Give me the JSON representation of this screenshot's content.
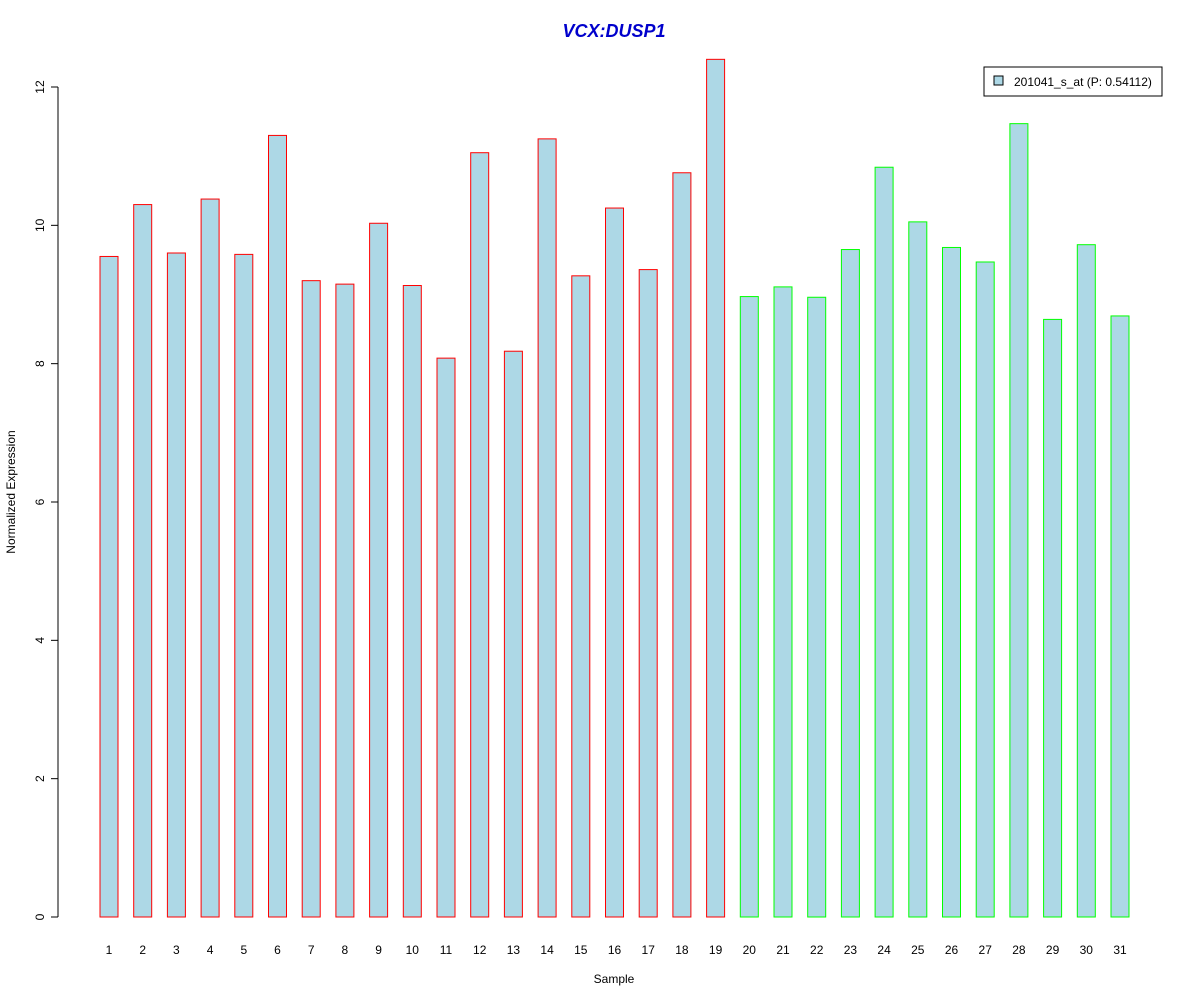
{
  "chart_data": {
    "type": "bar",
    "title": "VCX:DUSP1",
    "xlabel": "Sample",
    "ylabel": "Normalized Expression",
    "ylim": [
      0,
      12.4
    ],
    "yticks": [
      0,
      2,
      4,
      6,
      8,
      10,
      12
    ],
    "grid": false,
    "legend_position": "top-right",
    "categories": [
      "1",
      "2",
      "3",
      "4",
      "5",
      "6",
      "7",
      "8",
      "9",
      "10",
      "11",
      "12",
      "13",
      "14",
      "15",
      "16",
      "17",
      "18",
      "19",
      "20",
      "21",
      "22",
      "23",
      "24",
      "25",
      "26",
      "27",
      "28",
      "29",
      "30",
      "31"
    ],
    "values": [
      9.55,
      10.3,
      9.6,
      10.38,
      9.58,
      11.3,
      9.2,
      9.15,
      10.03,
      9.13,
      8.08,
      11.05,
      8.18,
      11.25,
      9.27,
      10.25,
      9.36,
      10.76,
      12.4,
      8.97,
      9.11,
      8.96,
      9.65,
      10.84,
      10.05,
      9.68,
      9.47,
      11.47,
      8.64,
      9.72,
      8.69
    ],
    "groups": [
      "red",
      "red",
      "red",
      "red",
      "red",
      "red",
      "red",
      "red",
      "red",
      "red",
      "red",
      "red",
      "red",
      "red",
      "red",
      "red",
      "red",
      "red",
      "red",
      "green",
      "green",
      "green",
      "green",
      "green",
      "green",
      "green",
      "green",
      "green",
      "green",
      "green",
      "green"
    ],
    "legend": {
      "label": "201041_s_at (P: 0.54112)"
    },
    "colors": {
      "bar_fill": "#add8e6",
      "red_border": "#ff0000",
      "green_border": "#00ff00",
      "title": "#0000cc",
      "axis": "#000000"
    }
  }
}
